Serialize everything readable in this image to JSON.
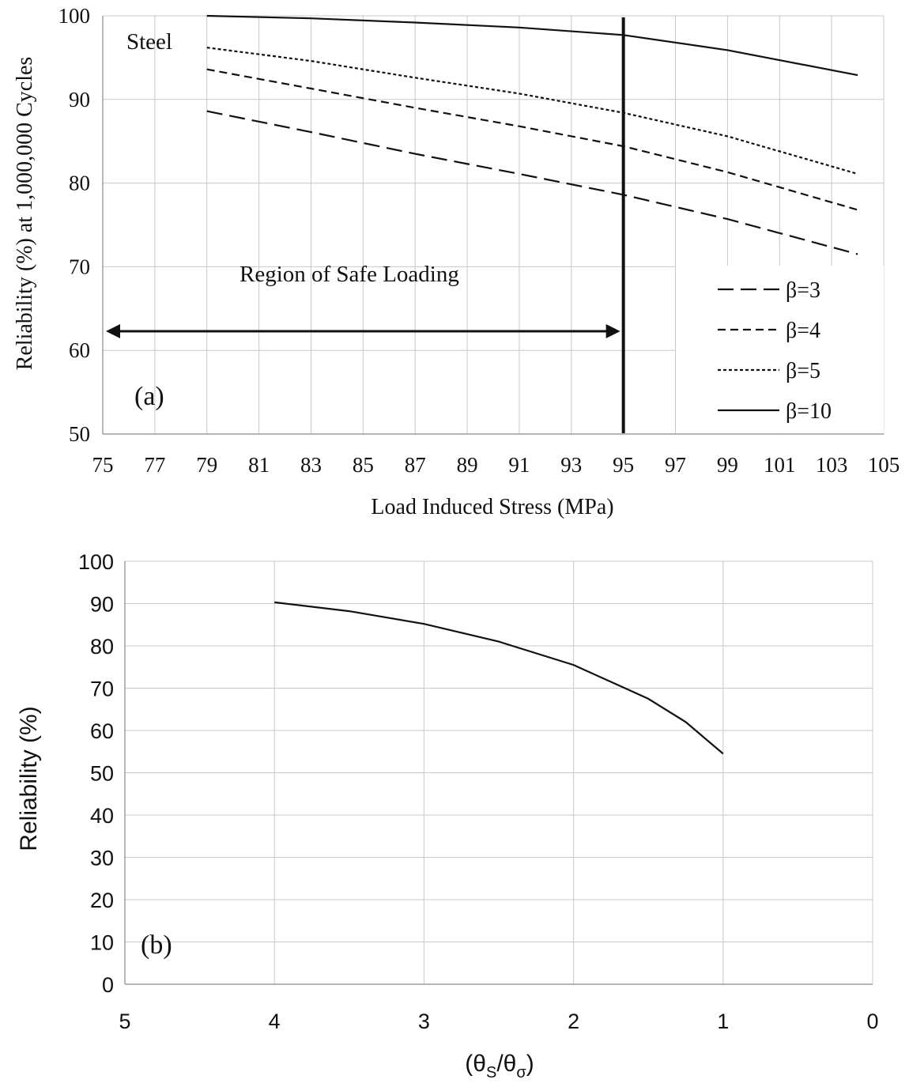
{
  "chart_data": [
    {
      "id": "a",
      "type": "line",
      "panel_label": "(a)",
      "annotation_material": "Steel",
      "annotation_region": "Region of Safe Loading",
      "region_range": [
        75,
        95
      ],
      "threshold_x": 95,
      "xlabel": "Load Induced Stress (MPa)",
      "ylabel": "Reliability (%) at 1,000,000 Cycles",
      "xlim": [
        75,
        105
      ],
      "ylim": [
        50,
        100
      ],
      "x_ticks": [
        "75",
        "77",
        "79",
        "81",
        "83",
        "85",
        "87",
        "89",
        "91",
        "93",
        "95",
        "97",
        "99",
        "101",
        "103",
        "105"
      ],
      "y_ticks": [
        "50",
        "60",
        "70",
        "80",
        "90",
        "100"
      ],
      "legend_position": "bottom-right",
      "series": [
        {
          "name": "β=3",
          "dash": "long-dash",
          "x": [
            79,
            83,
            87,
            91,
            95,
            99,
            104
          ],
          "values": [
            88.6,
            86.1,
            83.5,
            81.1,
            78.6,
            75.7,
            71.5
          ]
        },
        {
          "name": "β=4",
          "dash": "short-dash",
          "x": [
            79,
            83,
            87,
            91,
            95,
            99,
            104
          ],
          "values": [
            93.6,
            91.3,
            89.0,
            86.8,
            84.4,
            81.3,
            76.8
          ]
        },
        {
          "name": "β=5",
          "dash": "dotted",
          "x": [
            79,
            83,
            87,
            91,
            95,
            99,
            104
          ],
          "values": [
            96.2,
            94.6,
            92.6,
            90.7,
            88.4,
            85.6,
            81.1
          ]
        },
        {
          "name": "β=10",
          "dash": "solid",
          "x": [
            79,
            83,
            87,
            91,
            95,
            99,
            104
          ],
          "values": [
            100.0,
            99.7,
            99.2,
            98.6,
            97.7,
            95.9,
            92.9
          ]
        }
      ]
    },
    {
      "id": "b",
      "type": "line",
      "panel_label": "(b)",
      "xlabel": "(θS/θσ)",
      "xlabel_parts": {
        "open": "(θ",
        "sub1": "S",
        "mid": "/θ",
        "sub2": "σ",
        "close": ")"
      },
      "ylabel": "Reliability (%)",
      "xlim": [
        5,
        0
      ],
      "ylim": [
        0,
        100
      ],
      "x_ticks": [
        "5",
        "4",
        "3",
        "2",
        "1",
        "0"
      ],
      "y_ticks": [
        "0",
        "10",
        "20",
        "30",
        "40",
        "50",
        "60",
        "70",
        "80",
        "90",
        "100"
      ],
      "series": [
        {
          "name": "Reliability",
          "x": [
            4,
            3.5,
            3,
            2.5,
            2,
            1.5,
            1.25,
            1
          ],
          "values": [
            90.3,
            88.2,
            85.2,
            81.0,
            75.5,
            67.5,
            62.0,
            54.5
          ]
        }
      ]
    }
  ]
}
